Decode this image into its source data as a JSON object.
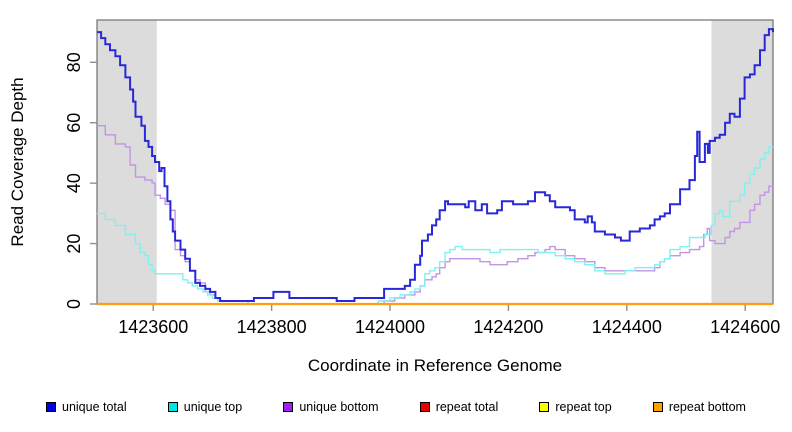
{
  "chart_data": {
    "type": "line",
    "step": true,
    "title": "",
    "xlabel": "Coordinate in Reference Genome",
    "ylabel": "Read Coverage Depth",
    "xlim": [
      1423505,
      1424647
    ],
    "ylim": [
      0,
      94
    ],
    "x_ticks": [
      1423600,
      1423800,
      1424000,
      1424200,
      1424400,
      1424600
    ],
    "y_ticks": [
      0,
      20,
      40,
      60,
      80
    ],
    "grid": false,
    "legend_position": "bottom",
    "frame_color": "#6F6F6F",
    "tick_color": "#8F8F8F",
    "shaded_regions": [
      {
        "from": 1423505,
        "to": 1423606,
        "color": "#DCDCDC"
      },
      {
        "from": 1424543,
        "to": 1424647,
        "color": "#DCDCDC"
      }
    ],
    "draw_order": [
      "repeat_total",
      "repeat_top",
      "unique_bottom",
      "unique_top",
      "repeat_bottom",
      "unique_total"
    ],
    "series": [
      {
        "id": "unique_total",
        "label": "unique total",
        "legend_color": "#0000E6",
        "line_color": "#2828D8",
        "line_width": 2,
        "points": [
          [
            1423505,
            90
          ],
          [
            1423512,
            88
          ],
          [
            1423519,
            86
          ],
          [
            1423527,
            84
          ],
          [
            1423536,
            82
          ],
          [
            1423544,
            79
          ],
          [
            1423553,
            75
          ],
          [
            1423561,
            71
          ],
          [
            1423566,
            67
          ],
          [
            1423570,
            62
          ],
          [
            1423580,
            59
          ],
          [
            1423586,
            54
          ],
          [
            1423592,
            52
          ],
          [
            1423598,
            49
          ],
          [
            1423603,
            47
          ],
          [
            1423610,
            44
          ],
          [
            1423614,
            45
          ],
          [
            1423619,
            39
          ],
          [
            1423624,
            34
          ],
          [
            1423629,
            28
          ],
          [
            1423633,
            24
          ],
          [
            1423637,
            21
          ],
          [
            1423646,
            18
          ],
          [
            1423654,
            15
          ],
          [
            1423662,
            11
          ],
          [
            1423671,
            7
          ],
          [
            1423679,
            6
          ],
          [
            1423688,
            5
          ],
          [
            1423696,
            4
          ],
          [
            1423705,
            2
          ],
          [
            1423713,
            1
          ],
          [
            1423770,
            2
          ],
          [
            1423803,
            4
          ],
          [
            1423830,
            2
          ],
          [
            1423910,
            1
          ],
          [
            1423940,
            2
          ],
          [
            1423990,
            5
          ],
          [
            1424025,
            6
          ],
          [
            1424034,
            8
          ],
          [
            1424042,
            13
          ],
          [
            1424051,
            16
          ],
          [
            1424054,
            21
          ],
          [
            1424064,
            23
          ],
          [
            1424071,
            26
          ],
          [
            1424078,
            28
          ],
          [
            1424084,
            31
          ],
          [
            1424093,
            34
          ],
          [
            1424098,
            33
          ],
          [
            1424127,
            32
          ],
          [
            1424133,
            34
          ],
          [
            1424144,
            31
          ],
          [
            1424155,
            33
          ],
          [
            1424164,
            30
          ],
          [
            1424181,
            31
          ],
          [
            1424189,
            34
          ],
          [
            1424208,
            33
          ],
          [
            1424233,
            34
          ],
          [
            1424245,
            37
          ],
          [
            1424262,
            36
          ],
          [
            1424270,
            34
          ],
          [
            1424279,
            32
          ],
          [
            1424304,
            31
          ],
          [
            1424312,
            28
          ],
          [
            1424329,
            27
          ],
          [
            1424334,
            29
          ],
          [
            1424341,
            27
          ],
          [
            1424346,
            24
          ],
          [
            1424363,
            23
          ],
          [
            1424380,
            22
          ],
          [
            1424390,
            21
          ],
          [
            1424405,
            24
          ],
          [
            1424422,
            25
          ],
          [
            1424439,
            26
          ],
          [
            1424447,
            28
          ],
          [
            1424456,
            29
          ],
          [
            1424464,
            30
          ],
          [
            1424473,
            33
          ],
          [
            1424490,
            38
          ],
          [
            1424506,
            41
          ],
          [
            1424515,
            49
          ],
          [
            1424519,
            57
          ],
          [
            1424523,
            47
          ],
          [
            1424532,
            53
          ],
          [
            1424537,
            50
          ],
          [
            1424540,
            54
          ],
          [
            1424549,
            55
          ],
          [
            1424557,
            56
          ],
          [
            1424566,
            60
          ],
          [
            1424574,
            63
          ],
          [
            1424582,
            62
          ],
          [
            1424591,
            68
          ],
          [
            1424599,
            75
          ],
          [
            1424608,
            76
          ],
          [
            1424616,
            79
          ],
          [
            1424625,
            84
          ],
          [
            1424633,
            89
          ],
          [
            1424640,
            91
          ],
          [
            1424647,
            90
          ]
        ]
      },
      {
        "id": "unique_top",
        "label": "unique top",
        "legend_color": "#00E5E5",
        "line_color": "#82F0F0",
        "line_width": 1.4,
        "points": [
          [
            1423505,
            30
          ],
          [
            1423519,
            28
          ],
          [
            1423536,
            26
          ],
          [
            1423553,
            23
          ],
          [
            1423570,
            20
          ],
          [
            1423578,
            17
          ],
          [
            1423586,
            16
          ],
          [
            1423592,
            13
          ],
          [
            1423598,
            11
          ],
          [
            1423603,
            10
          ],
          [
            1423641,
            10
          ],
          [
            1423650,
            8
          ],
          [
            1423658,
            7
          ],
          [
            1423666,
            6
          ],
          [
            1423675,
            5
          ],
          [
            1423684,
            4
          ],
          [
            1423692,
            3
          ],
          [
            1423700,
            2
          ],
          [
            1423709,
            1
          ],
          [
            1423760,
            0
          ],
          [
            1423980,
            1
          ],
          [
            1424000,
            2
          ],
          [
            1424017,
            3
          ],
          [
            1424034,
            4
          ],
          [
            1424042,
            5
          ],
          [
            1424051,
            6
          ],
          [
            1424059,
            10
          ],
          [
            1424067,
            11
          ],
          [
            1424076,
            12
          ],
          [
            1424084,
            14
          ],
          [
            1424093,
            17
          ],
          [
            1424101,
            18
          ],
          [
            1424110,
            19
          ],
          [
            1424122,
            18
          ],
          [
            1424169,
            17
          ],
          [
            1424186,
            18
          ],
          [
            1424250,
            17
          ],
          [
            1424279,
            16
          ],
          [
            1424296,
            15
          ],
          [
            1424312,
            14
          ],
          [
            1424329,
            13
          ],
          [
            1424346,
            11
          ],
          [
            1424363,
            10
          ],
          [
            1424397,
            11
          ],
          [
            1424414,
            12
          ],
          [
            1424447,
            13
          ],
          [
            1424456,
            14
          ],
          [
            1424464,
            15
          ],
          [
            1424473,
            18
          ],
          [
            1424490,
            19
          ],
          [
            1424506,
            22
          ],
          [
            1424532,
            23
          ],
          [
            1424543,
            26
          ],
          [
            1424549,
            30
          ],
          [
            1424557,
            31
          ],
          [
            1424562,
            29
          ],
          [
            1424574,
            34
          ],
          [
            1424591,
            36
          ],
          [
            1424599,
            40
          ],
          [
            1424608,
            43
          ],
          [
            1424616,
            45
          ],
          [
            1424625,
            48
          ],
          [
            1424633,
            50
          ],
          [
            1424640,
            52
          ],
          [
            1424647,
            52
          ]
        ]
      },
      {
        "id": "unique_bottom",
        "label": "unique bottom",
        "legend_color": "#A020F0",
        "line_color": "#C493E6",
        "line_width": 1.4,
        "points": [
          [
            1423505,
            59
          ],
          [
            1423519,
            56
          ],
          [
            1423536,
            53
          ],
          [
            1423553,
            52
          ],
          [
            1423561,
            46
          ],
          [
            1423570,
            42
          ],
          [
            1423586,
            41
          ],
          [
            1423598,
            40
          ],
          [
            1423603,
            36
          ],
          [
            1423612,
            35
          ],
          [
            1423620,
            33
          ],
          [
            1423629,
            31
          ],
          [
            1423637,
            18
          ],
          [
            1423646,
            16
          ],
          [
            1423654,
            14
          ],
          [
            1423662,
            11
          ],
          [
            1423671,
            8
          ],
          [
            1423679,
            7
          ],
          [
            1423688,
            4
          ],
          [
            1423696,
            3
          ],
          [
            1423705,
            2
          ],
          [
            1423713,
            1
          ],
          [
            1423760,
            0
          ],
          [
            1423990,
            1
          ],
          [
            1424008,
            2
          ],
          [
            1424025,
            3
          ],
          [
            1424042,
            4
          ],
          [
            1424051,
            6
          ],
          [
            1424059,
            8
          ],
          [
            1424071,
            9
          ],
          [
            1424078,
            10
          ],
          [
            1424084,
            12
          ],
          [
            1424093,
            14
          ],
          [
            1424101,
            15
          ],
          [
            1424152,
            14
          ],
          [
            1424169,
            13
          ],
          [
            1424198,
            14
          ],
          [
            1424216,
            15
          ],
          [
            1424233,
            16
          ],
          [
            1424245,
            17
          ],
          [
            1424262,
            18
          ],
          [
            1424270,
            19
          ],
          [
            1424279,
            18
          ],
          [
            1424296,
            16
          ],
          [
            1424312,
            15
          ],
          [
            1424329,
            14
          ],
          [
            1424346,
            12
          ],
          [
            1424363,
            11
          ],
          [
            1424447,
            12
          ],
          [
            1424456,
            14
          ],
          [
            1424464,
            15
          ],
          [
            1424473,
            16
          ],
          [
            1424490,
            17
          ],
          [
            1424506,
            18
          ],
          [
            1424523,
            19
          ],
          [
            1424530,
            23
          ],
          [
            1424536,
            25
          ],
          [
            1424540,
            21
          ],
          [
            1424549,
            20
          ],
          [
            1424566,
            22
          ],
          [
            1424574,
            24
          ],
          [
            1424582,
            25
          ],
          [
            1424591,
            27
          ],
          [
            1424608,
            31
          ],
          [
            1424616,
            33
          ],
          [
            1424625,
            36
          ],
          [
            1424633,
            37
          ],
          [
            1424640,
            39
          ],
          [
            1424647,
            39
          ]
        ]
      },
      {
        "id": "repeat_total",
        "label": "repeat total",
        "legend_color": "#E60000",
        "line_color": "#E60000",
        "line_width": 1,
        "points": [
          [
            1423505,
            0
          ],
          [
            1424647,
            0
          ]
        ]
      },
      {
        "id": "repeat_top",
        "label": "repeat top",
        "legend_color": "#FFFF00",
        "line_color": "#FFFF00",
        "line_width": 1,
        "points": [
          [
            1423505,
            0
          ],
          [
            1424647,
            0
          ]
        ]
      },
      {
        "id": "repeat_bottom",
        "label": "repeat bottom",
        "legend_color": "#FFA000",
        "line_color": "#FF9D0A",
        "line_width": 2.2,
        "points": [
          [
            1423505,
            0
          ],
          [
            1424647,
            0
          ]
        ]
      }
    ]
  }
}
